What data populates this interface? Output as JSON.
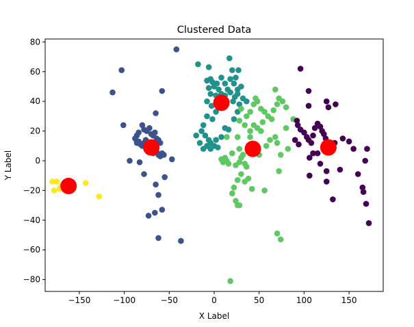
{
  "chart_data": {
    "type": "scatter",
    "title": "Clustered Data",
    "xlabel": "X Label",
    "ylabel": "Y Label",
    "xlim": [
      -188,
      188
    ],
    "ylim": [
      -88,
      82
    ],
    "xticks": [
      -150,
      -100,
      -50,
      0,
      50,
      100,
      150
    ],
    "yticks": [
      -80,
      -60,
      -40,
      -20,
      0,
      20,
      40,
      60,
      80
    ],
    "grid": false,
    "legend": "none",
    "series": [
      {
        "color": "#fde725",
        "points": [
          [
            -180,
            -14
          ],
          [
            -178,
            -20
          ],
          [
            -175,
            -14
          ],
          [
            -172,
            -19
          ],
          [
            -170,
            -17
          ],
          [
            -143,
            -15
          ],
          [
            -128,
            -24
          ]
        ]
      },
      {
        "color": "#3b528b",
        "points": [
          [
            -103,
            61
          ],
          [
            -113,
            46
          ],
          [
            -42,
            75
          ],
          [
            -58,
            47
          ],
          [
            -65,
            32
          ],
          [
            -94,
            0
          ],
          [
            -83,
            -1
          ],
          [
            -78,
            -9
          ],
          [
            -73,
            -37
          ],
          [
            -66,
            -35
          ],
          [
            -65,
            -16
          ],
          [
            -62,
            -23
          ],
          [
            -58,
            -33
          ],
          [
            -55,
            -11
          ],
          [
            -62,
            -52
          ],
          [
            -37,
            -54
          ],
          [
            -47,
            1
          ],
          [
            -101,
            24
          ],
          [
            -80,
            24
          ],
          [
            -78,
            21
          ],
          [
            -75,
            20
          ],
          [
            -72,
            22
          ],
          [
            -70,
            18
          ],
          [
            -68,
            17
          ],
          [
            -66,
            19
          ],
          [
            -64,
            15
          ],
          [
            -62,
            14
          ],
          [
            -60,
            12
          ],
          [
            -86,
            17
          ],
          [
            -88,
            15
          ],
          [
            -84,
            13
          ],
          [
            -82,
            11
          ],
          [
            -80,
            10
          ],
          [
            -78,
            12
          ],
          [
            -76,
            14
          ],
          [
            -74,
            9
          ],
          [
            -72,
            7
          ],
          [
            -70,
            6
          ],
          [
            -68,
            5
          ],
          [
            -66,
            8
          ],
          [
            -64,
            6
          ],
          [
            -62,
            4
          ],
          [
            -60,
            3
          ],
          [
            -58,
            5
          ],
          [
            -56,
            4
          ],
          [
            -84,
            19
          ],
          [
            -86,
            12
          ]
        ]
      },
      {
        "color": "#21918c",
        "points": [
          [
            -18,
            65
          ],
          [
            -6,
            63
          ],
          [
            17,
            69
          ],
          [
            20,
            61
          ],
          [
            24,
            56
          ],
          [
            27,
            61
          ],
          [
            30,
            50
          ],
          [
            26,
            45
          ],
          [
            23,
            43
          ],
          [
            21,
            40
          ],
          [
            18,
            46
          ],
          [
            15,
            48
          ],
          [
            12,
            44
          ],
          [
            8,
            45
          ],
          [
            5,
            48
          ],
          [
            3,
            52
          ],
          [
            0,
            50
          ],
          [
            -2,
            53
          ],
          [
            -4,
            55
          ],
          [
            -8,
            54
          ],
          [
            -6,
            49
          ],
          [
            -4,
            45
          ],
          [
            2,
            44
          ],
          [
            6,
            40
          ],
          [
            10,
            38
          ],
          [
            14,
            40
          ],
          [
            -8,
            40
          ],
          [
            -3,
            37
          ],
          [
            2,
            33
          ],
          [
            -2,
            28
          ],
          [
            -8,
            30
          ],
          [
            -12,
            24
          ],
          [
            -14,
            20
          ],
          [
            -10,
            17
          ],
          [
            -6,
            14
          ],
          [
            -4,
            12
          ],
          [
            0,
            10
          ],
          [
            2,
            14
          ],
          [
            4,
            9
          ],
          [
            -20,
            17
          ],
          [
            -16,
            12
          ],
          [
            -12,
            8
          ],
          [
            -8,
            10
          ],
          [
            -4,
            8
          ],
          [
            8,
            16
          ],
          [
            12,
            22
          ],
          [
            16,
            21
          ],
          [
            22,
            28
          ],
          [
            26,
            33
          ],
          [
            28,
            38
          ],
          [
            32,
            42
          ],
          [
            26,
            48
          ],
          [
            22,
            52
          ],
          [
            18,
            55
          ],
          [
            12,
            52
          ],
          [
            8,
            56
          ],
          [
            36,
            40
          ]
        ]
      },
      {
        "color": "#5ec962",
        "points": [
          [
            18,
            -81
          ],
          [
            20,
            -22
          ],
          [
            24,
            -27
          ],
          [
            26,
            -30
          ],
          [
            28,
            -30
          ],
          [
            22,
            -18
          ],
          [
            26,
            -13
          ],
          [
            30,
            -9
          ],
          [
            34,
            -14
          ],
          [
            38,
            -12
          ],
          [
            42,
            -19
          ],
          [
            56,
            -20
          ],
          [
            70,
            -49
          ],
          [
            74,
            -53
          ],
          [
            8,
            1
          ],
          [
            10,
            -1
          ],
          [
            12,
            2
          ],
          [
            14,
            0
          ],
          [
            16,
            -2
          ],
          [
            24,
            -3
          ],
          [
            28,
            -1
          ],
          [
            30,
            2
          ],
          [
            32,
            4
          ],
          [
            34,
            -2
          ],
          [
            36,
            -4
          ],
          [
            20,
            5
          ],
          [
            28,
            8
          ],
          [
            38,
            8
          ],
          [
            50,
            4
          ],
          [
            58,
            10
          ],
          [
            62,
            14
          ],
          [
            68,
            16
          ],
          [
            70,
            12
          ],
          [
            74,
            4
          ],
          [
            72,
            -7
          ],
          [
            82,
            8
          ],
          [
            36,
            30
          ],
          [
            40,
            33
          ],
          [
            44,
            38
          ],
          [
            48,
            40
          ],
          [
            52,
            35
          ],
          [
            56,
            33
          ],
          [
            60,
            30
          ],
          [
            64,
            28
          ],
          [
            66,
            34
          ],
          [
            70,
            38
          ],
          [
            72,
            42
          ],
          [
            76,
            40
          ],
          [
            80,
            36
          ],
          [
            68,
            48
          ],
          [
            44,
            24
          ],
          [
            48,
            22
          ],
          [
            52,
            20
          ],
          [
            28,
            27
          ],
          [
            34,
            24
          ],
          [
            40,
            20
          ],
          [
            14,
            16
          ],
          [
            26,
            16
          ],
          [
            40,
            16
          ],
          [
            54,
            26
          ],
          [
            30,
            35
          ],
          [
            46,
            42
          ],
          [
            88,
            28
          ],
          [
            80,
            22
          ]
        ]
      },
      {
        "color": "#440154",
        "points": [
          [
            96,
            62
          ],
          [
            105,
            47
          ],
          [
            105,
            37
          ],
          [
            125,
            40
          ],
          [
            127,
            36
          ],
          [
            135,
            38
          ],
          [
            150,
            13
          ],
          [
            155,
            8
          ],
          [
            160,
            -9
          ],
          [
            165,
            -18
          ],
          [
            166,
            -21
          ],
          [
            168,
            0
          ],
          [
            169,
            -29
          ],
          [
            170,
            8
          ],
          [
            172,
            -42
          ],
          [
            132,
            -26
          ],
          [
            140,
            -6
          ],
          [
            143,
            15
          ],
          [
            125,
            -14
          ],
          [
            125,
            -7
          ],
          [
            106,
            -10
          ],
          [
            106,
            2
          ],
          [
            110,
            5
          ],
          [
            115,
            5
          ],
          [
            118,
            -2
          ],
          [
            92,
            27
          ],
          [
            93,
            24
          ],
          [
            96,
            21
          ],
          [
            100,
            19
          ],
          [
            103,
            16
          ],
          [
            105,
            14
          ],
          [
            108,
            12
          ],
          [
            110,
            17
          ],
          [
            112,
            22
          ],
          [
            115,
            25
          ],
          [
            118,
            23
          ],
          [
            120,
            20
          ],
          [
            122,
            18
          ],
          [
            124,
            15
          ],
          [
            126,
            12
          ],
          [
            128,
            9
          ],
          [
            130,
            7
          ],
          [
            132,
            10
          ],
          [
            134,
            12
          ],
          [
            90,
            14
          ],
          [
            94,
            11
          ]
        ]
      }
    ],
    "centroids": {
      "color": "#ff0000",
      "points": [
        [
          -162,
          -17
        ],
        [
          -70,
          9
        ],
        [
          8,
          39
        ],
        [
          43,
          8
        ],
        [
          127,
          9
        ]
      ]
    }
  }
}
